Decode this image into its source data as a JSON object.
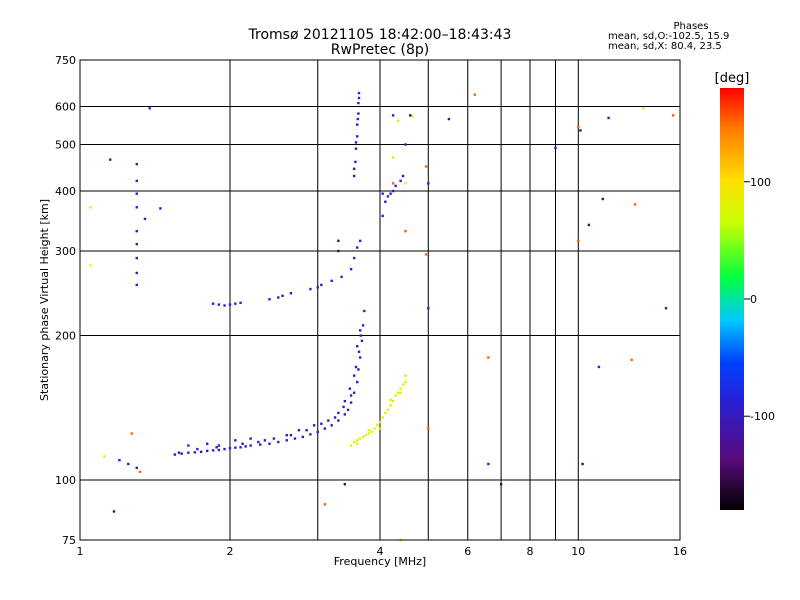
{
  "title": {
    "line1": "Tromsø 20121105 18:42:00–18:43:43",
    "line2": "RwPretec (8p)"
  },
  "phases_box": {
    "header": "Phases",
    "line_o": "mean, sd,O:-102.5, 15.9",
    "line_x": "mean, sd,X:  80.4, 23.5"
  },
  "chart_data": {
    "type": "scatter",
    "xlabel": "Frequency [MHz]",
    "ylabel": "Stationary phase Virtual Height [km]",
    "x_scale": "log",
    "y_scale": "log",
    "xlim": [
      1,
      16
    ],
    "ylim": [
      75,
      750
    ],
    "x_ticks": [
      1,
      2,
      4,
      6,
      8,
      10,
      16
    ],
    "x_tick_labels": [
      "1",
      "2",
      "4",
      "6",
      "8",
      "10",
      "16"
    ],
    "x_minor_ticks": [
      3,
      5,
      7,
      9
    ],
    "y_ticks": [
      75,
      100,
      200,
      300,
      400,
      500,
      600,
      750
    ],
    "y_tick_labels": [
      "75",
      "100",
      "200",
      "300",
      "400",
      "500",
      "600",
      "750"
    ],
    "grid": true,
    "colorbar": {
      "label": "[deg]",
      "range": [
        -180,
        180
      ],
      "ticks": [
        100,
        0,
        -100
      ],
      "tick_labels": [
        "100",
        "0",
        "-100"
      ],
      "colormap": "rainbow: black (-180), purple, blue, cyan, green, yellow, orange, red (180)"
    },
    "series": [
      {
        "name": "",
        "points": [
          [
            1.55,
            113
          ],
          [
            1.6,
            113.5
          ],
          [
            1.65,
            114
          ],
          [
            1.7,
            114.2
          ],
          [
            1.75,
            114.5
          ],
          [
            1.8,
            115
          ],
          [
            1.85,
            115.3
          ],
          [
            1.9,
            115.5
          ],
          [
            1.95,
            116
          ],
          [
            2.0,
            116.5
          ],
          [
            2.05,
            116.8
          ],
          [
            2.1,
            117
          ],
          [
            2.15,
            117.5
          ],
          [
            2.2,
            118
          ],
          [
            2.3,
            118.5
          ],
          [
            2.4,
            119
          ],
          [
            2.5,
            120
          ],
          [
            2.6,
            121
          ],
          [
            2.7,
            122
          ],
          [
            2.8,
            123
          ],
          [
            2.9,
            124.5
          ],
          [
            3.0,
            126
          ],
          [
            3.1,
            128
          ],
          [
            3.2,
            130
          ],
          [
            3.3,
            133
          ],
          [
            3.4,
            137
          ],
          [
            3.45,
            140
          ],
          [
            3.5,
            145
          ],
          [
            3.55,
            152
          ],
          [
            3.6,
            160
          ],
          [
            3.62,
            170
          ],
          [
            3.65,
            180
          ],
          [
            3.68,
            195
          ],
          [
            3.7,
            210
          ],
          [
            3.72,
            225
          ],
          [
            1.65,
            118
          ],
          [
            1.8,
            119
          ],
          [
            1.9,
            118
          ],
          [
            2.05,
            121
          ],
          [
            2.2,
            122
          ],
          [
            2.35,
            121
          ],
          [
            2.6,
            124
          ],
          [
            2.75,
            127
          ],
          [
            2.95,
            130
          ],
          [
            3.15,
            133
          ],
          [
            3.3,
            138
          ],
          [
            3.4,
            146
          ],
          [
            3.5,
            150
          ],
          [
            3.55,
            165
          ],
          [
            3.6,
            190
          ],
          [
            3.65,
            205
          ],
          [
            1.58,
            114
          ],
          [
            1.72,
            116
          ],
          [
            1.88,
            117
          ],
          [
            2.12,
            119
          ],
          [
            2.28,
            120
          ],
          [
            2.45,
            122
          ],
          [
            2.65,
            124
          ],
          [
            2.85,
            127
          ],
          [
            3.05,
            131
          ],
          [
            3.25,
            135
          ],
          [
            3.38,
            142
          ],
          [
            3.48,
            155
          ],
          [
            3.58,
            172
          ],
          [
            3.63,
            185
          ],
          [
            3.66,
            200
          ],
          [
            1.85,
            233
          ],
          [
            1.9,
            232
          ],
          [
            1.95,
            231
          ],
          [
            2.0,
            232
          ],
          [
            2.05,
            233
          ],
          [
            2.1,
            234
          ],
          [
            2.4,
            238
          ],
          [
            2.5,
            240
          ],
          [
            2.55,
            242
          ],
          [
            2.65,
            245
          ],
          [
            2.9,
            250
          ],
          [
            3.0,
            252
          ],
          [
            3.05,
            255
          ],
          [
            3.2,
            260
          ],
          [
            3.35,
            265
          ],
          [
            3.5,
            275
          ],
          [
            3.55,
            290
          ],
          [
            3.6,
            305
          ],
          [
            3.65,
            315
          ],
          [
            1.3,
            255
          ],
          [
            1.3,
            270
          ],
          [
            1.3,
            290
          ],
          [
            1.3,
            310
          ],
          [
            1.3,
            330
          ],
          [
            1.3,
            370
          ],
          [
            1.3,
            395
          ],
          [
            1.3,
            420
          ],
          [
            1.3,
            455
          ],
          [
            1.35,
            350
          ],
          [
            1.2,
            110
          ],
          [
            1.25,
            108
          ],
          [
            1.3,
            106
          ],
          [
            3.55,
            430
          ],
          [
            3.57,
            460
          ],
          [
            3.58,
            490
          ],
          [
            3.6,
            520
          ],
          [
            3.6,
            550
          ],
          [
            3.62,
            580
          ],
          [
            3.62,
            610
          ],
          [
            3.63,
            640
          ],
          [
            3.55,
            445
          ],
          [
            3.58,
            505
          ],
          [
            3.61,
            565
          ],
          [
            3.63,
            625
          ],
          [
            4.05,
            355
          ],
          [
            4.1,
            380
          ],
          [
            4.15,
            390
          ],
          [
            4.2,
            395
          ],
          [
            4.25,
            400
          ],
          [
            4.3,
            410
          ],
          [
            4.4,
            420
          ],
          [
            4.45,
            430
          ],
          [
            4.05,
            395
          ],
          [
            4.25,
            575
          ],
          [
            4.5,
            500
          ],
          [
            5.0,
            415
          ],
          [
            5.0,
            228
          ],
          [
            5.5,
            565
          ],
          [
            6.6,
            108
          ],
          [
            1.38,
            595
          ],
          [
            1.45,
            368
          ],
          [
            1.15,
            465
          ],
          [
            11.5,
            568
          ],
          [
            15.0,
            228
          ],
          [
            11.0,
            172
          ],
          [
            9.0,
            492
          ]
        ]
      },
      {
        "name": "",
        "points": [
          [
            3.5,
            118
          ],
          [
            3.55,
            120
          ],
          [
            3.6,
            121
          ],
          [
            3.65,
            122
          ],
          [
            3.7,
            123
          ],
          [
            3.75,
            124
          ],
          [
            3.8,
            125
          ],
          [
            3.85,
            126
          ],
          [
            3.9,
            128
          ],
          [
            3.95,
            130
          ],
          [
            4.0,
            132
          ],
          [
            4.05,
            135
          ],
          [
            4.1,
            138
          ],
          [
            4.15,
            140
          ],
          [
            4.2,
            143
          ],
          [
            4.25,
            146
          ],
          [
            4.3,
            150
          ],
          [
            4.35,
            152
          ],
          [
            4.4,
            155
          ],
          [
            4.45,
            158
          ],
          [
            4.5,
            160
          ],
          [
            3.6,
            119
          ],
          [
            3.8,
            127
          ],
          [
            4.0,
            128
          ],
          [
            4.2,
            147
          ],
          [
            4.4,
            152
          ],
          [
            4.5,
            165
          ],
          [
            1.05,
            370
          ],
          [
            1.05,
            280
          ],
          [
            1.12,
            112
          ],
          [
            4.4,
            75
          ],
          [
            4.25,
            470
          ],
          [
            4.5,
            415
          ],
          [
            4.35,
            560
          ],
          [
            13.5,
            595
          ],
          [
            4.65,
            572
          ]
        ]
      },
      {
        "name": "",
        "points": [
          [
            6.2,
            635
          ],
          [
            15.5,
            575
          ],
          [
            13.0,
            375
          ],
          [
            10.0,
            545
          ],
          [
            10.0,
            315
          ],
          [
            12.8,
            178
          ],
          [
            6.6,
            180
          ],
          [
            4.5,
            330
          ],
          [
            3.1,
            89
          ],
          [
            1.27,
            125
          ],
          [
            1.32,
            104
          ],
          [
            4.95,
            295
          ],
          [
            4.95,
            450
          ],
          [
            5.0,
            128
          ],
          [
            4.25,
            415
          ]
        ]
      },
      {
        "name": "",
        "points": [
          [
            1.17,
            86
          ],
          [
            7.0,
            98
          ],
          [
            10.2,
            108
          ],
          [
            10.5,
            340
          ],
          [
            11.2,
            385
          ],
          [
            10.1,
            535
          ],
          [
            4.6,
            575
          ],
          [
            3.4,
            98
          ],
          [
            3.3,
            300
          ],
          [
            3.3,
            315
          ]
        ]
      }
    ],
    "series_phase_deg": [
      -100,
      75,
      150,
      -150
    ]
  }
}
